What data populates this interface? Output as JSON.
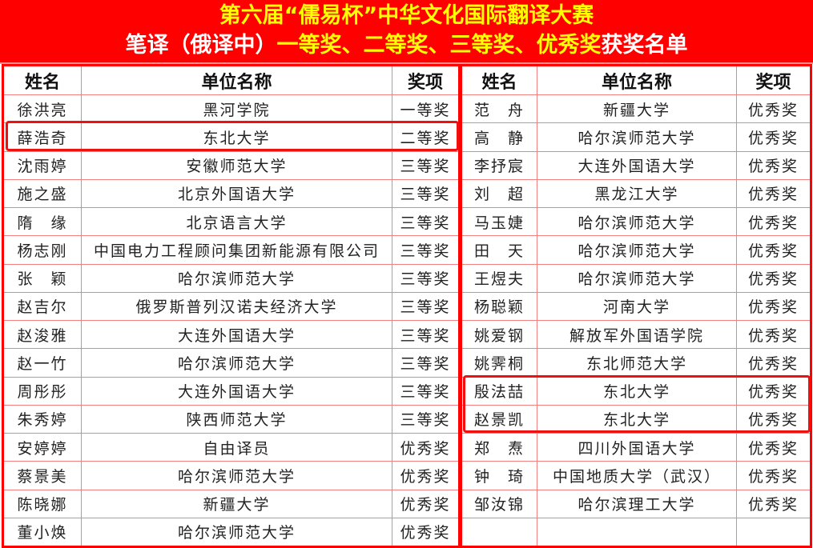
{
  "title": {
    "line1": "第六届“儒易杯”中华文化国际翻译大赛",
    "line2_a": "笔译（俄译中）",
    "line2_b": "一等奖、二等奖、三等奖、优秀奖",
    "line2_c": "获奖名单"
  },
  "colors": {
    "banner": "#fe0000",
    "title_yellow": "#ffff00",
    "highlight": "#f01010"
  },
  "headers": {
    "name": "姓名",
    "unit": "单位名称",
    "award": "奖项"
  },
  "left_rows": [
    {
      "name": "徐洪亮",
      "unit": "黑河学院",
      "award": "一等奖"
    },
    {
      "name": "薛浩奇",
      "unit": "东北大学",
      "award": "二等奖",
      "highlighted": true
    },
    {
      "name": "沈雨婷",
      "unit": "安徽师范大学",
      "award": "三等奖"
    },
    {
      "name": "施之盛",
      "unit": "北京外国语大学",
      "award": "三等奖"
    },
    {
      "name": "隋　缘",
      "unit": "北京语言大学",
      "award": "三等奖"
    },
    {
      "name": "杨志刚",
      "unit": "中国电力工程顾问集团新能源有限公司",
      "award": "三等奖"
    },
    {
      "name": "张　颖",
      "unit": "哈尔滨师范大学",
      "award": "三等奖"
    },
    {
      "name": "赵吉尔",
      "unit": "俄罗斯普列汉诺夫经济大学",
      "award": "三等奖"
    },
    {
      "name": "赵浚雅",
      "unit": "大连外国语大学",
      "award": "三等奖"
    },
    {
      "name": "赵一竹",
      "unit": "哈尔滨师范大学",
      "award": "三等奖"
    },
    {
      "name": "周彤彤",
      "unit": "大连外国语大学",
      "award": "三等奖"
    },
    {
      "name": "朱秀婷",
      "unit": "陕西师范大学",
      "award": "三等奖"
    },
    {
      "name": "安婷婷",
      "unit": "自由译员",
      "award": "优秀奖"
    },
    {
      "name": "蔡景美",
      "unit": "哈尔滨师范大学",
      "award": "优秀奖"
    },
    {
      "name": "陈晓娜",
      "unit": "新疆大学",
      "award": "优秀奖"
    },
    {
      "name": "董小焕",
      "unit": "哈尔滨师范大学",
      "award": "优秀奖"
    }
  ],
  "right_rows": [
    {
      "name": "范　舟",
      "unit": "新疆大学",
      "award": "优秀奖"
    },
    {
      "name": "高　静",
      "unit": "哈尔滨师范大学",
      "award": "优秀奖"
    },
    {
      "name": "李抒宸",
      "unit": "大连外国语大学",
      "award": "优秀奖"
    },
    {
      "name": "刘　超",
      "unit": "黑龙江大学",
      "award": "优秀奖"
    },
    {
      "name": "马玉婕",
      "unit": "哈尔滨师范大学",
      "award": "优秀奖"
    },
    {
      "name": "田　天",
      "unit": "哈尔滨师范大学",
      "award": "优秀奖"
    },
    {
      "name": "王煜夫",
      "unit": "哈尔滨师范大学",
      "award": "优秀奖"
    },
    {
      "name": "杨聪颖",
      "unit": "河南大学",
      "award": "优秀奖"
    },
    {
      "name": "姚爱钢",
      "unit": "解放军外国语学院",
      "award": "优秀奖"
    },
    {
      "name": "姚霁桐",
      "unit": "东北师范大学",
      "award": "优秀奖"
    },
    {
      "name": "殷法喆",
      "unit": "东北大学",
      "award": "优秀奖",
      "highlighted": true
    },
    {
      "name": "赵景凯",
      "unit": "东北大学",
      "award": "优秀奖",
      "highlighted": true
    },
    {
      "name": "郑　焘",
      "unit": "四川外国语大学",
      "award": "优秀奖"
    },
    {
      "name": "钟　琦",
      "unit": "中国地质大学（武汉）",
      "award": "优秀奖"
    },
    {
      "name": "邹汝锦",
      "unit": "哈尔滨理工大学",
      "award": "优秀奖"
    },
    {
      "name": "",
      "unit": "",
      "award": ""
    }
  ]
}
